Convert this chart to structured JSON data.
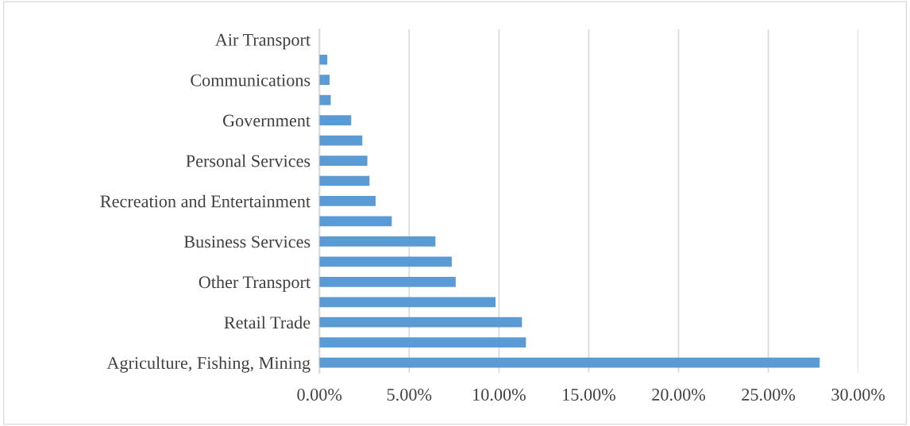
{
  "chart_data": {
    "type": "bar",
    "orientation": "horizontal",
    "categories": [
      "Air Transport",
      null,
      "Communications",
      null,
      "Government",
      null,
      "Personal Services",
      null,
      "Recreation and Entertainment",
      null,
      "Business Services",
      null,
      "Other Transport",
      null,
      "Retail Trade",
      null,
      "Agriculture, Fishing, Mining"
    ],
    "values": [
      0,
      0.44,
      0.57,
      0.63,
      1.77,
      2.39,
      2.67,
      2.79,
      3.13,
      4.03,
      6.46,
      7.37,
      7.59,
      9.81,
      11.28,
      11.5,
      27.86
    ],
    "color": "#5b9bd5",
    "xlim": [
      0,
      30
    ],
    "xticks": [
      {
        "value": 0,
        "label": "0.00%"
      },
      {
        "value": 5,
        "label": "5.00%"
      },
      {
        "value": 10,
        "label": "10.00%"
      },
      {
        "value": 15,
        "label": "15.00%"
      },
      {
        "value": 20,
        "label": "20.00%"
      },
      {
        "value": 25,
        "label": "25.00%"
      },
      {
        "value": 30,
        "label": "30.00%"
      }
    ],
    "grid": "x",
    "legend": false
  }
}
